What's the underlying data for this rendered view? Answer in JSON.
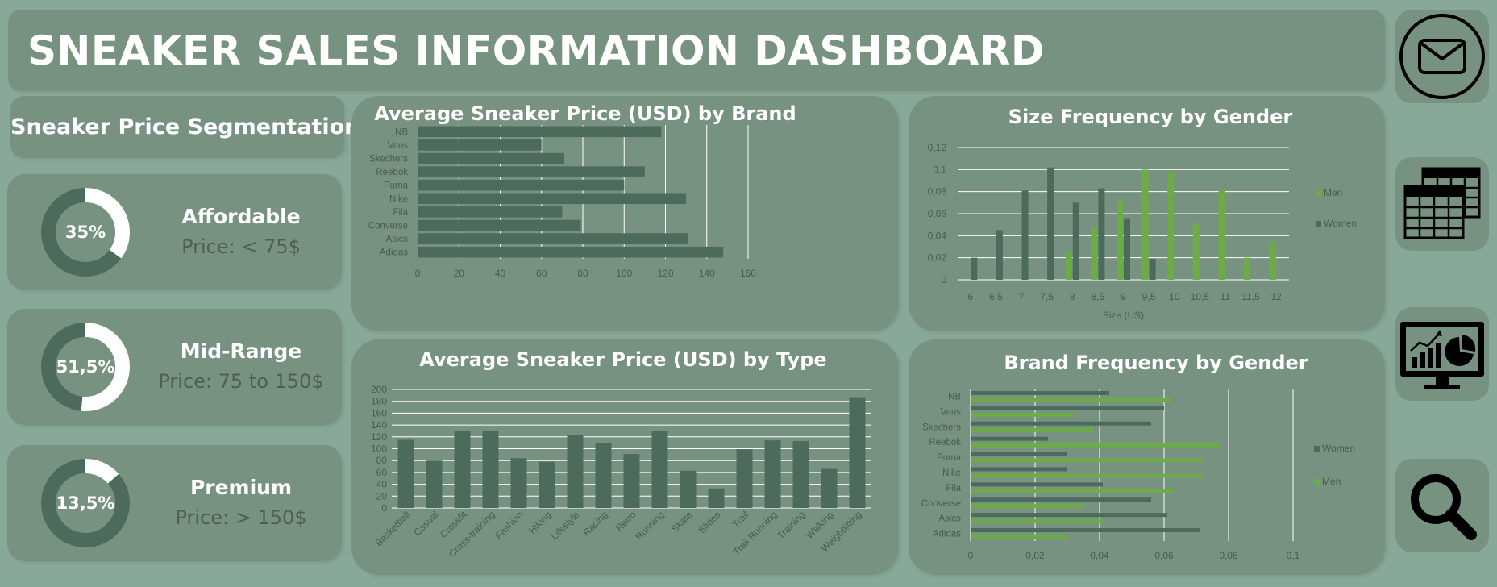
{
  "header": {
    "title": "SNEAKER SALES INFORMATION DASHBOARD"
  },
  "segmentation": {
    "title": "Sneaker Price Segmentation",
    "segments": [
      {
        "name": "Affordable",
        "percent_label": "35%",
        "percent": 35,
        "description": "Price: < 75$"
      },
      {
        "name": "Mid-Range",
        "percent_label": "51,5%",
        "percent": 51.5,
        "description": "Price: 75 to 150$"
      },
      {
        "name": "Premium",
        "percent_label": "13,5%",
        "percent": 13.5,
        "description": "Price: > 150$"
      }
    ]
  },
  "colors": {
    "background": "#88a899",
    "panel": "#789282",
    "bar_dark": "#4c6b5c",
    "bar_green": "#6cab46",
    "donut_fill": "#ffffff",
    "donut_track": "#4c6b5c"
  },
  "sidebar_icons": [
    "envelope-icon",
    "calendar-icon",
    "analytics-monitor-icon",
    "search-icon"
  ],
  "chart_data": [
    {
      "type": "bar",
      "orientation": "horizontal",
      "title": "Average Sneaker Price (USD) by Brand",
      "categories": [
        "NB",
        "Vans",
        "Skechers",
        "Reebok",
        "Puma",
        "Nike",
        "Fila",
        "Converse",
        "Asics",
        "Adidas"
      ],
      "values": [
        118,
        60,
        71,
        110,
        100,
        130,
        70,
        79,
        131,
        148
      ],
      "xlim": [
        0,
        160
      ],
      "xticks": [
        "0",
        "20",
        "40",
        "60",
        "80",
        "100",
        "120",
        "140",
        "160"
      ],
      "grid": true
    },
    {
      "type": "bar",
      "title": "Size Frequency by Gender",
      "xlabel": "Size (US)",
      "categories": [
        "6",
        "6,5",
        "7",
        "7,5",
        "8",
        "8,5",
        "9",
        "9,5",
        "10",
        "10,5",
        "11",
        "11,5",
        "12"
      ],
      "series": [
        {
          "name": "Men",
          "values": [
            0,
            0,
            0,
            0,
            0.025,
            0.047,
            0.072,
            0.1,
            0.098,
            0.051,
            0.081,
            0.02,
            0.034
          ]
        },
        {
          "name": "Women",
          "values": [
            0.02,
            0.045,
            0.081,
            0.102,
            0.07,
            0.083,
            0.056,
            0.019,
            0,
            0,
            0,
            0,
            0
          ]
        }
      ],
      "ylim": [
        0,
        0.12
      ],
      "yticks": [
        "0",
        "0,02",
        "0,04",
        "0,06",
        "0,08",
        "0,1",
        "0,12"
      ],
      "legend": "right",
      "grid": true
    },
    {
      "type": "bar",
      "title": "Average Sneaker Price (USD) by Type",
      "categories": [
        "Basketball",
        "Casual",
        "Crossfit",
        "Cross-training",
        "Fashion",
        "Hiking",
        "Lifestyle",
        "Racing",
        "Retro",
        "Running",
        "Skate",
        "Slides",
        "Trail",
        "Trail Running",
        "Training",
        "Walking",
        "Weightlifting"
      ],
      "values": [
        115,
        80,
        130,
        130,
        84,
        78,
        123,
        110,
        91,
        130,
        63,
        33,
        99,
        114,
        113,
        66,
        187
      ],
      "ylim": [
        0,
        200
      ],
      "yticks": [
        "0",
        "20",
        "40",
        "60",
        "80",
        "100",
        "120",
        "140",
        "160",
        "180",
        "200"
      ],
      "grid": true
    },
    {
      "type": "bar",
      "orientation": "horizontal",
      "title": "Brand Frequency by Gender",
      "categories": [
        "NB",
        "Vans",
        "Skechers",
        "Reebok",
        "Puma",
        "Nike",
        "Fila",
        "Converse",
        "Asics",
        "Adidas"
      ],
      "series": [
        {
          "name": "Women",
          "values": [
            0.043,
            0.06,
            0.056,
            0.024,
            0.03,
            0.03,
            0.041,
            0.056,
            0.061,
            0.071
          ]
        },
        {
          "name": "Men",
          "values": [
            0.062,
            0.032,
            0.038,
            0.077,
            0.072,
            0.072,
            0.063,
            0.035,
            0.041,
            0.03
          ]
        }
      ],
      "xlim": [
        0,
        0.1
      ],
      "xticks": [
        "0",
        "0,02",
        "0,04",
        "0,06",
        "0,08",
        "0,1"
      ],
      "legend": "right",
      "grid": true
    }
  ]
}
